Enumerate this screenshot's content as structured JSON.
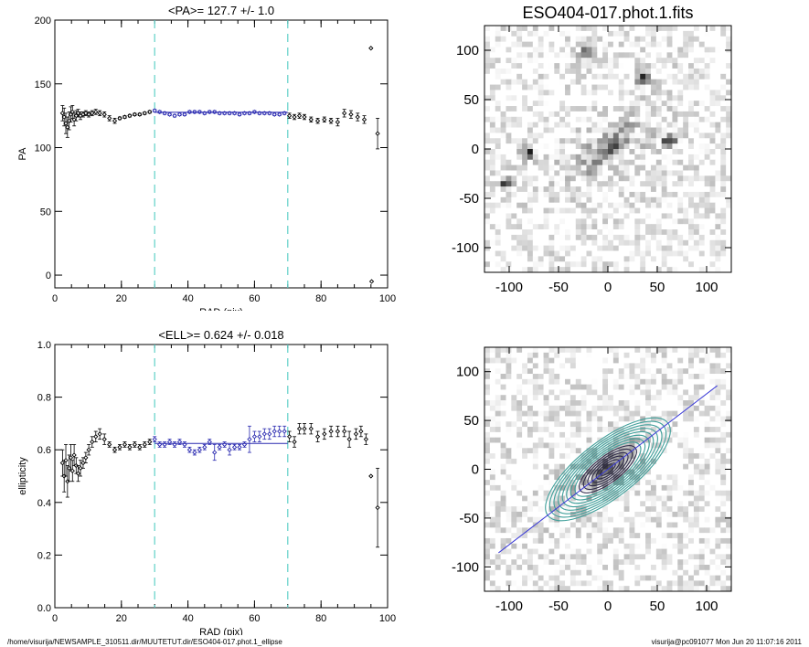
{
  "chart_data": [
    {
      "type": "scatter",
      "title": "<PA>= 127.7 +/-   1.0",
      "xlabel": "RAD (pix)",
      "ylabel": "PA",
      "xlim": [
        0,
        100
      ],
      "ylim": [
        -10,
        200
      ],
      "xticks": [
        0,
        20,
        40,
        60,
        80,
        100
      ],
      "yticks": [
        0,
        50,
        100,
        150,
        200
      ],
      "vlines": [
        30,
        70
      ],
      "fit_line": {
        "x": [
          30,
          70
        ],
        "y": [
          127.7,
          127.7
        ]
      },
      "points": [
        {
          "x": 2.3,
          "y": 127,
          "err": 6
        },
        {
          "x": 2.8,
          "y": 124,
          "err": 7
        },
        {
          "x": 3.3,
          "y": 119,
          "err": 8
        },
        {
          "x": 3.8,
          "y": 116,
          "err": 8
        },
        {
          "x": 4.3,
          "y": 121,
          "err": 7
        },
        {
          "x": 4.8,
          "y": 126,
          "err": 6
        },
        {
          "x": 5.3,
          "y": 128,
          "err": 5
        },
        {
          "x": 5.8,
          "y": 122,
          "err": 5
        },
        {
          "x": 6.4,
          "y": 125,
          "err": 4
        },
        {
          "x": 7.0,
          "y": 127,
          "err": 3
        },
        {
          "x": 7.7,
          "y": 125,
          "err": 3
        },
        {
          "x": 8.5,
          "y": 126,
          "err": 2
        },
        {
          "x": 9.3,
          "y": 127,
          "err": 2
        },
        {
          "x": 10.2,
          "y": 126,
          "err": 2
        },
        {
          "x": 11.2,
          "y": 127,
          "err": 2
        },
        {
          "x": 12.3,
          "y": 128,
          "err": 2
        },
        {
          "x": 13.5,
          "y": 127,
          "err": 2
        },
        {
          "x": 14.9,
          "y": 126,
          "err": 2
        },
        {
          "x": 16.4,
          "y": 123,
          "err": 2
        },
        {
          "x": 18.0,
          "y": 121,
          "err": 2
        },
        {
          "x": 19.5,
          "y": 123,
          "err": 1
        },
        {
          "x": 21.0,
          "y": 124,
          "err": 1
        },
        {
          "x": 22.5,
          "y": 125,
          "err": 1
        },
        {
          "x": 24.0,
          "y": 126,
          "err": 1
        },
        {
          "x": 25.5,
          "y": 126,
          "err": 1
        },
        {
          "x": 27.0,
          "y": 127,
          "err": 1
        },
        {
          "x": 28.5,
          "y": 128,
          "err": 1
        },
        {
          "x": 30.0,
          "y": 129,
          "err": 1
        },
        {
          "x": 31.5,
          "y": 128,
          "err": 1
        },
        {
          "x": 33.0,
          "y": 127,
          "err": 1
        },
        {
          "x": 34.5,
          "y": 126,
          "err": 1
        },
        {
          "x": 36.0,
          "y": 125,
          "err": 1
        },
        {
          "x": 37.5,
          "y": 126,
          "err": 1
        },
        {
          "x": 39.0,
          "y": 126,
          "err": 1
        },
        {
          "x": 40.5,
          "y": 128,
          "err": 1
        },
        {
          "x": 42.0,
          "y": 128,
          "err": 1
        },
        {
          "x": 43.5,
          "y": 128,
          "err": 1
        },
        {
          "x": 45.0,
          "y": 127,
          "err": 1
        },
        {
          "x": 46.5,
          "y": 128,
          "err": 1
        },
        {
          "x": 48.0,
          "y": 128,
          "err": 1
        },
        {
          "x": 49.5,
          "y": 127,
          "err": 1
        },
        {
          "x": 51.0,
          "y": 127,
          "err": 1
        },
        {
          "x": 52.5,
          "y": 127,
          "err": 1
        },
        {
          "x": 54.0,
          "y": 127,
          "err": 1
        },
        {
          "x": 55.5,
          "y": 126,
          "err": 1
        },
        {
          "x": 57.0,
          "y": 127,
          "err": 1
        },
        {
          "x": 58.5,
          "y": 127,
          "err": 1
        },
        {
          "x": 60.0,
          "y": 128,
          "err": 1
        },
        {
          "x": 61.5,
          "y": 127,
          "err": 1
        },
        {
          "x": 63.0,
          "y": 127,
          "err": 1
        },
        {
          "x": 64.5,
          "y": 127,
          "err": 1
        },
        {
          "x": 66.0,
          "y": 126,
          "err": 1
        },
        {
          "x": 67.5,
          "y": 126,
          "err": 1
        },
        {
          "x": 69.0,
          "y": 127,
          "err": 1
        },
        {
          "x": 70.5,
          "y": 125,
          "err": 2
        },
        {
          "x": 72.0,
          "y": 124,
          "err": 2
        },
        {
          "x": 73.5,
          "y": 125,
          "err": 2
        },
        {
          "x": 75.0,
          "y": 124,
          "err": 2
        },
        {
          "x": 77.0,
          "y": 122,
          "err": 2
        },
        {
          "x": 79.0,
          "y": 121,
          "err": 2
        },
        {
          "x": 81.0,
          "y": 122,
          "err": 2
        },
        {
          "x": 83.0,
          "y": 121,
          "err": 2
        },
        {
          "x": 85.0,
          "y": 120,
          "err": 3
        },
        {
          "x": 87.0,
          "y": 127,
          "err": 3
        },
        {
          "x": 89.0,
          "y": 126,
          "err": 3
        },
        {
          "x": 91.0,
          "y": 124,
          "err": 3
        },
        {
          "x": 93.0,
          "y": 122,
          "err": 3
        },
        {
          "x": 95.0,
          "y": 178,
          "err": 0
        },
        {
          "x": 95.2,
          "y": -5,
          "err": 0
        },
        {
          "x": 97.0,
          "y": 111,
          "err": 12
        }
      ]
    },
    {
      "type": "scatter",
      "title": "<ELL>= 0.624 +/-  0.018",
      "xlabel": "RAD (pix)",
      "ylabel": "ellipticity",
      "xlim": [
        0,
        100
      ],
      "ylim": [
        0.0,
        1.0
      ],
      "xticks": [
        0,
        20,
        40,
        60,
        80,
        100
      ],
      "yticks": [
        0.0,
        0.2,
        0.4,
        0.6,
        0.8,
        1.0
      ],
      "vlines": [
        30,
        70
      ],
      "fit_line": {
        "x": [
          30,
          70
        ],
        "y": [
          0.624,
          0.624
        ]
      },
      "points": [
        {
          "x": 2.3,
          "y": 0.55,
          "err": 0.05
        },
        {
          "x": 2.8,
          "y": 0.5,
          "err": 0.06
        },
        {
          "x": 3.3,
          "y": 0.56,
          "err": 0.06
        },
        {
          "x": 3.8,
          "y": 0.48,
          "err": 0.06
        },
        {
          "x": 4.3,
          "y": 0.53,
          "err": 0.05
        },
        {
          "x": 4.8,
          "y": 0.57,
          "err": 0.05
        },
        {
          "x": 5.3,
          "y": 0.52,
          "err": 0.04
        },
        {
          "x": 5.8,
          "y": 0.58,
          "err": 0.04
        },
        {
          "x": 6.4,
          "y": 0.54,
          "err": 0.03
        },
        {
          "x": 7.0,
          "y": 0.51,
          "err": 0.03
        },
        {
          "x": 7.7,
          "y": 0.53,
          "err": 0.03
        },
        {
          "x": 8.5,
          "y": 0.55,
          "err": 0.02
        },
        {
          "x": 9.3,
          "y": 0.57,
          "err": 0.02
        },
        {
          "x": 10.2,
          "y": 0.6,
          "err": 0.02
        },
        {
          "x": 11.2,
          "y": 0.63,
          "err": 0.02
        },
        {
          "x": 12.3,
          "y": 0.65,
          "err": 0.02
        },
        {
          "x": 13.5,
          "y": 0.66,
          "err": 0.02
        },
        {
          "x": 14.9,
          "y": 0.64,
          "err": 0.02
        },
        {
          "x": 16.4,
          "y": 0.62,
          "err": 0.01
        },
        {
          "x": 18.0,
          "y": 0.6,
          "err": 0.01
        },
        {
          "x": 19.5,
          "y": 0.61,
          "err": 0.01
        },
        {
          "x": 21.0,
          "y": 0.62,
          "err": 0.01
        },
        {
          "x": 22.5,
          "y": 0.61,
          "err": 0.01
        },
        {
          "x": 24.0,
          "y": 0.62,
          "err": 0.01
        },
        {
          "x": 25.5,
          "y": 0.61,
          "err": 0.01
        },
        {
          "x": 27.0,
          "y": 0.62,
          "err": 0.01
        },
        {
          "x": 28.5,
          "y": 0.63,
          "err": 0.01
        },
        {
          "x": 30.0,
          "y": 0.64,
          "err": 0.01
        },
        {
          "x": 31.5,
          "y": 0.62,
          "err": 0.01
        },
        {
          "x": 33.0,
          "y": 0.62,
          "err": 0.01
        },
        {
          "x": 34.5,
          "y": 0.63,
          "err": 0.01
        },
        {
          "x": 36.0,
          "y": 0.62,
          "err": 0.01
        },
        {
          "x": 37.5,
          "y": 0.63,
          "err": 0.01
        },
        {
          "x": 39.0,
          "y": 0.62,
          "err": 0.01
        },
        {
          "x": 40.5,
          "y": 0.6,
          "err": 0.01
        },
        {
          "x": 42.0,
          "y": 0.59,
          "err": 0.01
        },
        {
          "x": 43.5,
          "y": 0.6,
          "err": 0.01
        },
        {
          "x": 45.0,
          "y": 0.61,
          "err": 0.01
        },
        {
          "x": 46.5,
          "y": 0.63,
          "err": 0.01
        },
        {
          "x": 48.0,
          "y": 0.59,
          "err": 0.03
        },
        {
          "x": 49.5,
          "y": 0.61,
          "err": 0.01
        },
        {
          "x": 51.0,
          "y": 0.62,
          "err": 0.01
        },
        {
          "x": 52.5,
          "y": 0.6,
          "err": 0.02
        },
        {
          "x": 54.0,
          "y": 0.61,
          "err": 0.01
        },
        {
          "x": 55.5,
          "y": 0.61,
          "err": 0.01
        },
        {
          "x": 57.0,
          "y": 0.62,
          "err": 0.01
        },
        {
          "x": 58.5,
          "y": 0.64,
          "err": 0.05
        },
        {
          "x": 60.0,
          "y": 0.65,
          "err": 0.02
        },
        {
          "x": 61.5,
          "y": 0.65,
          "err": 0.02
        },
        {
          "x": 63.0,
          "y": 0.66,
          "err": 0.02
        },
        {
          "x": 64.5,
          "y": 0.66,
          "err": 0.02
        },
        {
          "x": 66.0,
          "y": 0.67,
          "err": 0.02
        },
        {
          "x": 67.5,
          "y": 0.67,
          "err": 0.02
        },
        {
          "x": 69.0,
          "y": 0.67,
          "err": 0.02
        },
        {
          "x": 70.5,
          "y": 0.65,
          "err": 0.02
        },
        {
          "x": 72.0,
          "y": 0.63,
          "err": 0.02
        },
        {
          "x": 73.5,
          "y": 0.68,
          "err": 0.02
        },
        {
          "x": 75.0,
          "y": 0.68,
          "err": 0.02
        },
        {
          "x": 77.0,
          "y": 0.68,
          "err": 0.02
        },
        {
          "x": 79.0,
          "y": 0.65,
          "err": 0.02
        },
        {
          "x": 81.0,
          "y": 0.66,
          "err": 0.02
        },
        {
          "x": 83.0,
          "y": 0.67,
          "err": 0.02
        },
        {
          "x": 85.0,
          "y": 0.67,
          "err": 0.02
        },
        {
          "x": 87.0,
          "y": 0.67,
          "err": 0.02
        },
        {
          "x": 88.5,
          "y": 0.64,
          "err": 0.03
        },
        {
          "x": 90.5,
          "y": 0.66,
          "err": 0.02
        },
        {
          "x": 92.0,
          "y": 0.67,
          "err": 0.02
        },
        {
          "x": 93.5,
          "y": 0.64,
          "err": 0.02
        },
        {
          "x": 95.0,
          "y": 0.5,
          "err": 0.0
        },
        {
          "x": 97.0,
          "y": 0.38,
          "err": 0.15
        }
      ]
    },
    {
      "type": "heatmap",
      "title": "ESO404-017.phot.1.fits",
      "xlim": [
        -125,
        125
      ],
      "ylim": [
        -125,
        125
      ],
      "xticks": [
        -100,
        -50,
        0,
        50,
        100
      ],
      "yticks": [
        -100,
        -50,
        0,
        50,
        100
      ],
      "galaxy": {
        "cx": 0,
        "cy": 0,
        "pa": 127.7,
        "ellipticity": 0.624
      },
      "stars": [
        [
          -22,
          100
        ],
        [
          -80,
          -5
        ],
        [
          62,
          8
        ],
        [
          -103,
          -35
        ],
        [
          35,
          70
        ]
      ]
    },
    {
      "type": "heatmap",
      "xlim": [
        -125,
        125
      ],
      "ylim": [
        -125,
        125
      ],
      "xticks": [
        -100,
        -50,
        0,
        50,
        100
      ],
      "yticks": [
        -100,
        -50,
        0,
        50,
        100
      ],
      "galaxy": {
        "cx": 0,
        "cy": 0,
        "pa": 127.7,
        "ellipticity": 0.624
      },
      "contour_levels": 14,
      "masks": [
        [
          -22,
          100,
          12
        ],
        [
          62,
          8,
          12
        ],
        [
          -80,
          -5,
          10
        ],
        [
          38,
          18,
          5
        ],
        [
          -28,
          -28,
          7
        ],
        [
          -18,
          -40,
          6
        ]
      ],
      "axis_line": true
    }
  ],
  "colors": {
    "series": "#000000",
    "fit": "#2a2ab0",
    "vline": "#5fd0c8",
    "contour_outer": "#3f9f9a",
    "contour_inner": "#2c2848",
    "axis_line": "#3a3ad8"
  },
  "footer": {
    "left": "/home/visurija/NEWSAMPLE_310511.dir/MUUTETUT.dir/ESO404-017.phot.1_ellipse",
    "right": "visurija@pc091077  Mon Jun 20 11:07:16 2011"
  }
}
